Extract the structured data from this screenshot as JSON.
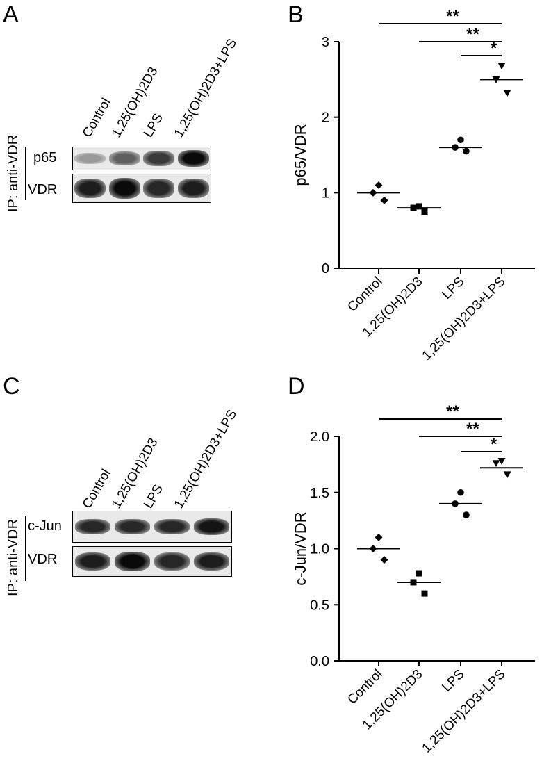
{
  "panels": {
    "A": {
      "letter": "A",
      "ip_label": "IP: anti-VDR",
      "bands": [
        "p65",
        "VDR"
      ],
      "lanes": [
        "Control",
        "1,25(OH)2D3",
        "LPS",
        "1,25(OH)2D3+LPS"
      ]
    },
    "B": {
      "letter": "B"
    },
    "C": {
      "letter": "C",
      "ip_label": "IP: anti-VDR",
      "bands": [
        "c-Jun",
        "VDR"
      ],
      "lanes": [
        "Control",
        "1,25(OH)2D3",
        "LPS",
        "1,25(OH)2D3+LPS"
      ]
    },
    "D": {
      "letter": "D"
    }
  },
  "blots": {
    "A": {
      "p65_intensity": [
        0.25,
        0.55,
        0.75,
        1.0
      ],
      "vdr_intensity": [
        0.9,
        1.0,
        0.85,
        0.9
      ]
    },
    "C": {
      "cjun_intensity": [
        0.85,
        0.85,
        0.85,
        0.95
      ],
      "vdr_intensity": [
        0.9,
        1.0,
        0.85,
        0.9
      ]
    }
  },
  "chart_data": [
    {
      "type": "scatter",
      "panel": "B",
      "title": "",
      "xlabel": "",
      "ylabel": "p65/VDR",
      "categories": [
        "Control",
        "1,25(OH)2D3",
        "LPS",
        "1,25(OH)2D3+LPS"
      ],
      "markers": [
        "diamond",
        "square",
        "circle",
        "triangle-down"
      ],
      "points": [
        [
          1.1,
          1.0,
          0.9
        ],
        [
          0.82,
          0.8,
          0.75
        ],
        [
          1.7,
          1.6,
          1.55
        ],
        [
          2.68,
          2.5,
          2.32
        ]
      ],
      "means": [
        1.0,
        0.8,
        1.6,
        2.5
      ],
      "ylim": [
        0,
        3
      ],
      "yticks": [
        "0",
        "1",
        "2",
        "3"
      ],
      "significance": [
        {
          "from": 0,
          "to": 3,
          "label": "**"
        },
        {
          "from": 1,
          "to": 3,
          "label": "**"
        },
        {
          "from": 2,
          "to": 3,
          "label": "*"
        }
      ]
    },
    {
      "type": "scatter",
      "panel": "D",
      "title": "",
      "xlabel": "",
      "ylabel": "c-Jun/VDR",
      "categories": [
        "Control",
        "1,25(OH)2D3",
        "LPS",
        "1,25(OH)2D3+LPS"
      ],
      "markers": [
        "diamond",
        "square",
        "circle",
        "triangle-down"
      ],
      "points": [
        [
          1.1,
          1.0,
          0.9
        ],
        [
          0.78,
          0.7,
          0.6
        ],
        [
          1.5,
          1.4,
          1.3
        ],
        [
          1.78,
          1.76,
          1.66
        ]
      ],
      "means": [
        1.0,
        0.7,
        1.4,
        1.72
      ],
      "ylim": [
        0,
        2.0
      ],
      "yticks": [
        "0.0",
        "0.5",
        "1.0",
        "1.5",
        "2.0"
      ],
      "significance": [
        {
          "from": 0,
          "to": 3,
          "label": "**"
        },
        {
          "from": 1,
          "to": 3,
          "label": "**"
        },
        {
          "from": 2,
          "to": 3,
          "label": "*"
        }
      ]
    }
  ]
}
